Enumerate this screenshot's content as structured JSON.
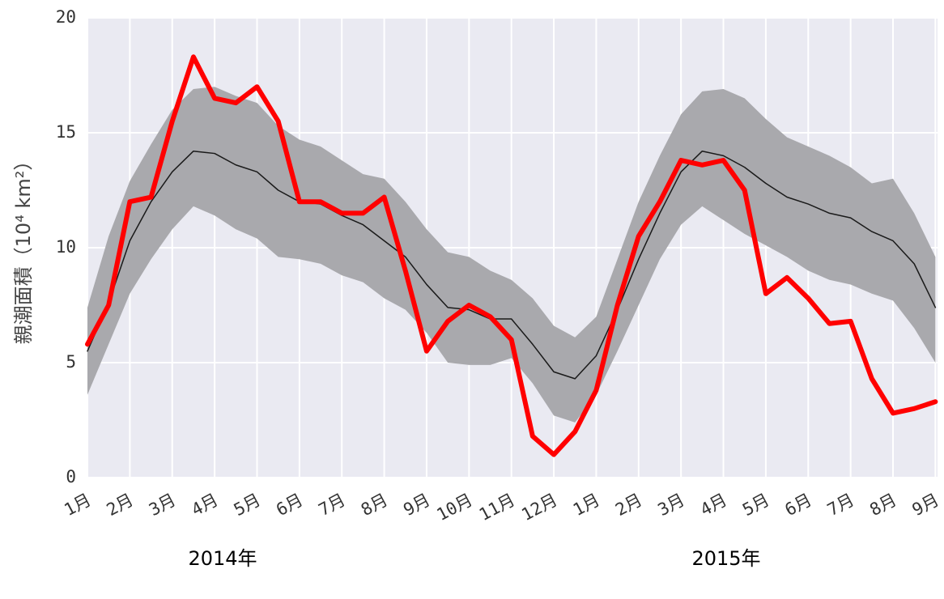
{
  "chart_data": {
    "type": "line",
    "ylabel": "親潮面積（10⁴ km²）",
    "annotations": [
      "2014年",
      "2015年"
    ],
    "xlim": [
      0,
      20.05
    ],
    "xticks": [
      {
        "value": 0,
        "label": "1月"
      },
      {
        "value": 1,
        "label": "2月"
      },
      {
        "value": 2,
        "label": "3月"
      },
      {
        "value": 3,
        "label": "4月"
      },
      {
        "value": 4,
        "label": "5月"
      },
      {
        "value": 5,
        "label": "6月"
      },
      {
        "value": 6,
        "label": "7月"
      },
      {
        "value": 7,
        "label": "8月"
      },
      {
        "value": 8,
        "label": "9月"
      },
      {
        "value": 9,
        "label": "10月"
      },
      {
        "value": 10,
        "label": "11月"
      },
      {
        "value": 11,
        "label": "12月"
      },
      {
        "value": 12,
        "label": "1月"
      },
      {
        "value": 13,
        "label": "2月"
      },
      {
        "value": 14,
        "label": "3月"
      },
      {
        "value": 15,
        "label": "4月"
      },
      {
        "value": 16,
        "label": "5月"
      },
      {
        "value": 17,
        "label": "6月"
      },
      {
        "value": 18,
        "label": "7月"
      },
      {
        "value": 19,
        "label": "8月"
      },
      {
        "value": 20,
        "label": "9月"
      }
    ],
    "ylim": [
      0,
      20
    ],
    "yticks": [
      0,
      5,
      10,
      15,
      20
    ],
    "grid": true,
    "x": [
      0,
      0.5,
      1,
      1.5,
      2,
      2.5,
      3,
      3.5,
      4,
      4.5,
      5,
      5.5,
      6,
      6.5,
      7,
      7.5,
      8,
      8.5,
      9,
      9.5,
      10,
      10.5,
      11,
      11.5,
      12,
      12.5,
      13,
      13.5,
      14,
      14.5,
      15,
      15.5,
      16,
      16.5,
      17,
      17.5,
      18,
      18.5,
      19,
      19.5,
      20
    ],
    "band": {
      "color": "#a9a9ad",
      "upper": [
        7.4,
        10.5,
        12.9,
        14.5,
        16.0,
        16.9,
        17.0,
        16.6,
        16.3,
        15.3,
        14.7,
        14.4,
        13.8,
        13.2,
        13.0,
        12.0,
        10.8,
        9.8,
        9.6,
        9.0,
        8.6,
        7.8,
        6.6,
        6.1,
        7.0,
        9.5,
        12.0,
        14.0,
        15.8,
        16.8,
        16.9,
        16.5,
        15.6,
        14.8,
        14.4,
        14.0,
        13.5,
        12.8,
        13.0,
        11.5,
        9.6
      ],
      "lower": [
        3.6,
        5.8,
        8.0,
        9.5,
        10.8,
        11.8,
        11.4,
        10.8,
        10.4,
        9.6,
        9.5,
        9.3,
        8.8,
        8.5,
        7.8,
        7.3,
        6.3,
        5.0,
        4.9,
        4.9,
        5.2,
        4.1,
        2.7,
        2.4,
        3.6,
        5.5,
        7.5,
        9.5,
        11.0,
        11.8,
        11.2,
        10.6,
        10.1,
        9.6,
        9.0,
        8.6,
        8.4,
        8.0,
        7.7,
        6.5,
        5.0
      ]
    },
    "series": [
      {
        "color": "#1a1a1a",
        "width": 1.5,
        "values": [
          5.5,
          7.6,
          10.3,
          12.0,
          13.3,
          14.2,
          14.1,
          13.6,
          13.3,
          12.5,
          12.0,
          11.9,
          11.4,
          11.0,
          10.3,
          9.6,
          8.4,
          7.4,
          7.3,
          6.9,
          6.9,
          5.8,
          4.6,
          4.3,
          5.3,
          7.3,
          9.5,
          11.5,
          13.3,
          14.2,
          14.0,
          13.5,
          12.8,
          12.2,
          11.9,
          11.5,
          11.3,
          10.7,
          10.3,
          9.3,
          7.4
        ]
      },
      {
        "color": "#ff0000",
        "width": 6,
        "values": [
          5.8,
          7.5,
          12.0,
          12.2,
          15.5,
          18.3,
          16.5,
          16.3,
          17.0,
          15.5,
          12.0,
          12.0,
          11.5,
          11.5,
          12.2,
          9.0,
          5.5,
          6.8,
          7.5,
          7.0,
          6.0,
          1.8,
          1.0,
          2.0,
          3.8,
          7.5,
          10.5,
          12.0,
          13.8,
          13.6,
          13.8,
          12.5,
          8.0,
          8.7,
          7.8,
          6.7,
          6.8,
          4.3,
          2.8,
          3.0,
          3.3
        ]
      }
    ]
  }
}
